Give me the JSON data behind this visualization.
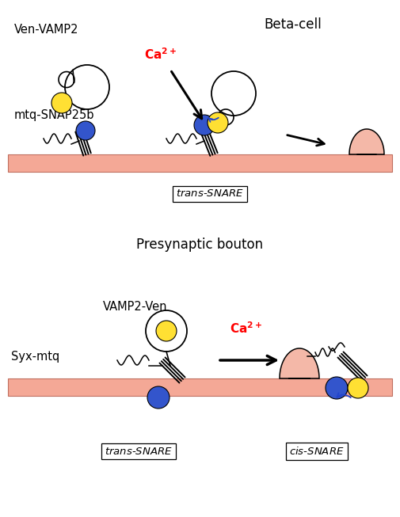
{
  "title_beta": "Beta-cell",
  "title_presyn": "Presynaptic bouton",
  "label_ven_vamp2": "Ven-VAMP2",
  "label_mtq_snap25b": "mtq-SNAP25b",
  "label_vamp2_ven": "VAMP2-Ven",
  "label_syx_mtq": "Syx-mtq",
  "label_trans_snare_beta": "trans-SNARE",
  "label_trans_snare_presyn": "trans-SNARE",
  "label_cis_snare": "cis-SNARE",
  "membrane_color": "#F4A896",
  "yellow_color": "#FFE033",
  "blue_color": "#3355CC",
  "red_color": "#FF0000",
  "blue_arrow_color": "#2244CC",
  "black": "#000000",
  "white": "#FFFFFF",
  "bg_color": "#FFFFFF",
  "fused_fill": "#F4B8A8"
}
